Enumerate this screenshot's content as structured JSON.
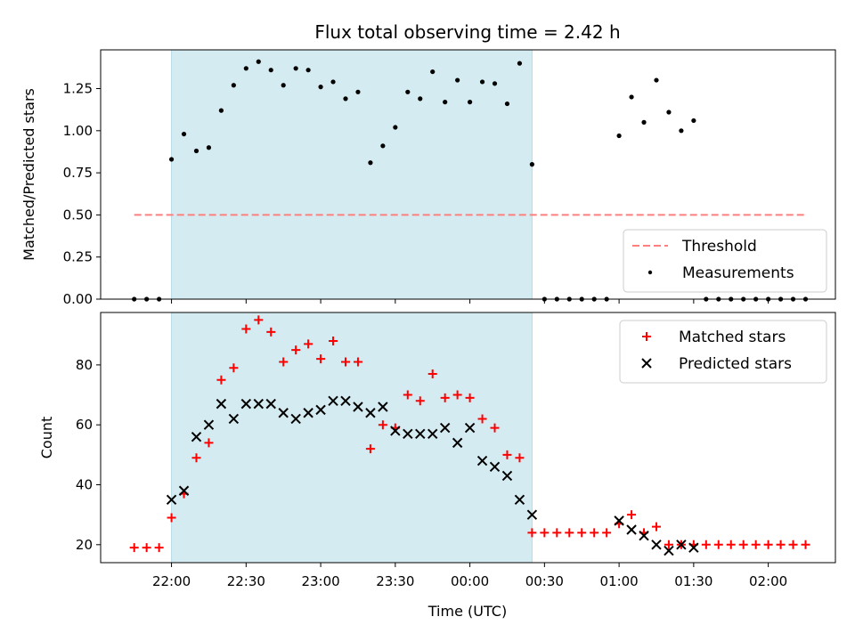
{
  "chart_data": {
    "type": "scatter",
    "title": "Flux total observing time = 2.42 h",
    "xlabel": "Time (UTC)",
    "x_ticks": [
      "22:00",
      "22:30",
      "23:00",
      "23:30",
      "00:00",
      "00:30",
      "01:00",
      "01:30",
      "02:00"
    ],
    "x_tick_minutes": [
      0,
      30,
      60,
      90,
      120,
      150,
      180,
      210,
      240
    ],
    "xlim_minutes": [
      -28.5,
      267
    ],
    "observing_window_minutes": [
      0,
      145
    ],
    "observing_window_color": "#d4ebf1",
    "panels": [
      {
        "ylabel": "Matched/Predicted stars",
        "ylim": [
          0,
          1.48
        ],
        "y_ticks": [
          "0.00",
          "0.25",
          "0.50",
          "0.75",
          "1.00",
          "1.25"
        ],
        "y_tick_values": [
          0,
          0.25,
          0.5,
          0.75,
          1.0,
          1.25
        ],
        "threshold": {
          "name": "Threshold",
          "value": 0.5,
          "x_range_minutes": [
            -15,
            255
          ],
          "color": "#ff7f7f"
        },
        "series": [
          {
            "name": "Measurements",
            "color": "#000000",
            "marker": "dot",
            "points": [
              [
                -15,
                0
              ],
              [
                -10,
                0
              ],
              [
                -5,
                0
              ],
              [
                0,
                0.83
              ],
              [
                5,
                0.98
              ],
              [
                10,
                0.88
              ],
              [
                15,
                0.9
              ],
              [
                20,
                1.12
              ],
              [
                25,
                1.27
              ],
              [
                30,
                1.37
              ],
              [
                35,
                1.41
              ],
              [
                40,
                1.36
              ],
              [
                45,
                1.27
              ],
              [
                50,
                1.37
              ],
              [
                55,
                1.36
              ],
              [
                60,
                1.26
              ],
              [
                65,
                1.29
              ],
              [
                70,
                1.19
              ],
              [
                75,
                1.23
              ],
              [
                80,
                0.81
              ],
              [
                85,
                0.91
              ],
              [
                90,
                1.02
              ],
              [
                95,
                1.23
              ],
              [
                100,
                1.19
              ],
              [
                105,
                1.35
              ],
              [
                110,
                1.17
              ],
              [
                115,
                1.3
              ],
              [
                120,
                1.17
              ],
              [
                125,
                1.29
              ],
              [
                130,
                1.28
              ],
              [
                135,
                1.16
              ],
              [
                140,
                1.4
              ],
              [
                145,
                0.8
              ],
              [
                150,
                0
              ],
              [
                155,
                0
              ],
              [
                160,
                0
              ],
              [
                165,
                0
              ],
              [
                170,
                0
              ],
              [
                175,
                0
              ],
              [
                180,
                0.97
              ],
              [
                185,
                1.2
              ],
              [
                190,
                1.05
              ],
              [
                195,
                1.3
              ],
              [
                200,
                1.11
              ],
              [
                205,
                1.0
              ],
              [
                210,
                1.06
              ],
              [
                215,
                0
              ],
              [
                220,
                0
              ],
              [
                225,
                0
              ],
              [
                230,
                0
              ],
              [
                235,
                0
              ],
              [
                240,
                0
              ],
              [
                245,
                0
              ],
              [
                250,
                0
              ],
              [
                255,
                0
              ]
            ]
          }
        ],
        "legend": [
          "Threshold",
          "Measurements"
        ],
        "legend_position": "lower-right"
      },
      {
        "ylabel": "Count",
        "ylim": [
          14,
          97.5
        ],
        "y_ticks": [
          "20",
          "40",
          "60",
          "80"
        ],
        "y_tick_values": [
          20,
          40,
          60,
          80
        ],
        "series": [
          {
            "name": "Matched stars",
            "color": "#ff0000",
            "marker": "plus",
            "points": [
              [
                -15,
                19
              ],
              [
                -10,
                19
              ],
              [
                -5,
                19
              ],
              [
                0,
                29
              ],
              [
                5,
                37
              ],
              [
                10,
                49
              ],
              [
                15,
                54
              ],
              [
                20,
                75
              ],
              [
                25,
                79
              ],
              [
                30,
                92
              ],
              [
                35,
                95
              ],
              [
                40,
                91
              ],
              [
                45,
                81
              ],
              [
                50,
                85
              ],
              [
                55,
                87
              ],
              [
                60,
                82
              ],
              [
                65,
                88
              ],
              [
                70,
                81
              ],
              [
                75,
                81
              ],
              [
                80,
                52
              ],
              [
                85,
                60
              ],
              [
                90,
                59
              ],
              [
                95,
                70
              ],
              [
                100,
                68
              ],
              [
                105,
                77
              ],
              [
                110,
                69
              ],
              [
                115,
                70
              ],
              [
                120,
                69
              ],
              [
                125,
                62
              ],
              [
                130,
                59
              ],
              [
                135,
                50
              ],
              [
                140,
                49
              ],
              [
                145,
                24
              ],
              [
                150,
                24
              ],
              [
                155,
                24
              ],
              [
                160,
                24
              ],
              [
                165,
                24
              ],
              [
                170,
                24
              ],
              [
                175,
                24
              ],
              [
                180,
                27
              ],
              [
                185,
                30
              ],
              [
                190,
                24
              ],
              [
                195,
                26
              ],
              [
                200,
                20
              ],
              [
                205,
                20
              ],
              [
                210,
                20
              ],
              [
                215,
                20
              ],
              [
                220,
                20
              ],
              [
                225,
                20
              ],
              [
                230,
                20
              ],
              [
                235,
                20
              ],
              [
                240,
                20
              ],
              [
                245,
                20
              ],
              [
                250,
                20
              ],
              [
                255,
                20
              ]
            ]
          },
          {
            "name": "Predicted stars",
            "color": "#000000",
            "marker": "cross",
            "points": [
              [
                0,
                35
              ],
              [
                5,
                38
              ],
              [
                10,
                56
              ],
              [
                15,
                60
              ],
              [
                20,
                67
              ],
              [
                25,
                62
              ],
              [
                30,
                67
              ],
              [
                35,
                67
              ],
              [
                40,
                67
              ],
              [
                45,
                64
              ],
              [
                50,
                62
              ],
              [
                55,
                64
              ],
              [
                60,
                65
              ],
              [
                65,
                68
              ],
              [
                70,
                68
              ],
              [
                75,
                66
              ],
              [
                80,
                64
              ],
              [
                85,
                66
              ],
              [
                90,
                58
              ],
              [
                95,
                57
              ],
              [
                100,
                57
              ],
              [
                105,
                57
              ],
              [
                110,
                59
              ],
              [
                115,
                54
              ],
              [
                120,
                59
              ],
              [
                125,
                48
              ],
              [
                130,
                46
              ],
              [
                135,
                43
              ],
              [
                140,
                35
              ],
              [
                145,
                30
              ],
              [
                180,
                28
              ],
              [
                185,
                25
              ],
              [
                190,
                23
              ],
              [
                195,
                20
              ],
              [
                200,
                18
              ],
              [
                205,
                20
              ],
              [
                210,
                19
              ]
            ]
          }
        ],
        "legend": [
          "Matched stars",
          "Predicted stars"
        ],
        "legend_position": "upper-right"
      }
    ]
  }
}
